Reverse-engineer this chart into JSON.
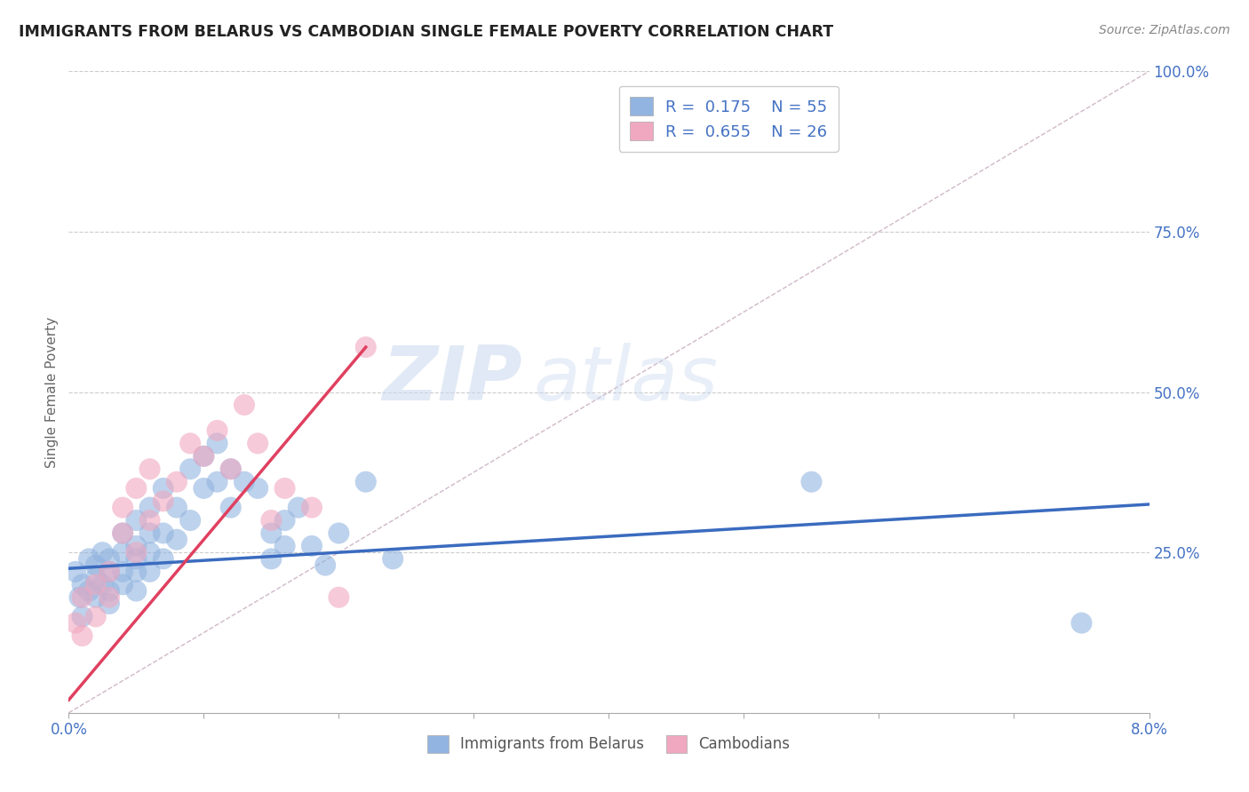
{
  "title": "IMMIGRANTS FROM BELARUS VS CAMBODIAN SINGLE FEMALE POVERTY CORRELATION CHART",
  "source": "Source: ZipAtlas.com",
  "ylabel": "Single Female Poverty",
  "right_yticklabels": [
    "100.0%",
    "75.0%",
    "50.0%",
    "25.0%",
    ""
  ],
  "right_ytick_vals": [
    1.0,
    0.75,
    0.5,
    0.25,
    0.0
  ],
  "watermark_text": "ZIP",
  "watermark_text2": "atlas",
  "background_color": "#ffffff",
  "scatter_blue_color": "#92b4e0",
  "scatter_pink_color": "#f0a8c0",
  "line_blue_color": "#3a6bbf",
  "line_pink_color": "#e04060",
  "diag_line_color": "#d0b8c8",
  "xlim": [
    0.0,
    0.08
  ],
  "ylim": [
    0.0,
    1.0
  ],
  "blue_scatter_x": [
    0.0005,
    0.0008,
    0.001,
    0.001,
    0.0015,
    0.0015,
    0.002,
    0.002,
    0.002,
    0.0025,
    0.0025,
    0.003,
    0.003,
    0.003,
    0.003,
    0.004,
    0.004,
    0.004,
    0.004,
    0.005,
    0.005,
    0.005,
    0.005,
    0.005,
    0.006,
    0.006,
    0.006,
    0.006,
    0.007,
    0.007,
    0.007,
    0.008,
    0.008,
    0.009,
    0.009,
    0.01,
    0.01,
    0.011,
    0.011,
    0.012,
    0.012,
    0.013,
    0.014,
    0.015,
    0.015,
    0.016,
    0.016,
    0.017,
    0.018,
    0.019,
    0.02,
    0.022,
    0.024,
    0.055,
    0.075
  ],
  "blue_scatter_y": [
    0.22,
    0.18,
    0.2,
    0.15,
    0.24,
    0.19,
    0.23,
    0.18,
    0.21,
    0.25,
    0.2,
    0.22,
    0.17,
    0.24,
    0.19,
    0.28,
    0.22,
    0.25,
    0.2,
    0.3,
    0.24,
    0.26,
    0.22,
    0.19,
    0.28,
    0.32,
    0.25,
    0.22,
    0.35,
    0.28,
    0.24,
    0.32,
    0.27,
    0.38,
    0.3,
    0.4,
    0.35,
    0.42,
    0.36,
    0.38,
    0.32,
    0.36,
    0.35,
    0.28,
    0.24,
    0.3,
    0.26,
    0.32,
    0.26,
    0.23,
    0.28,
    0.36,
    0.24,
    0.36,
    0.14
  ],
  "pink_scatter_x": [
    0.0005,
    0.001,
    0.001,
    0.002,
    0.002,
    0.003,
    0.003,
    0.004,
    0.004,
    0.005,
    0.005,
    0.006,
    0.006,
    0.007,
    0.008,
    0.009,
    0.01,
    0.011,
    0.012,
    0.013,
    0.014,
    0.015,
    0.016,
    0.018,
    0.02,
    0.022
  ],
  "pink_scatter_y": [
    0.14,
    0.18,
    0.12,
    0.2,
    0.15,
    0.22,
    0.18,
    0.28,
    0.32,
    0.25,
    0.35,
    0.3,
    0.38,
    0.33,
    0.36,
    0.42,
    0.4,
    0.44,
    0.38,
    0.48,
    0.42,
    0.3,
    0.35,
    0.32,
    0.18,
    0.57
  ],
  "blue_line_x": [
    0.0,
    0.08
  ],
  "blue_line_y": [
    0.225,
    0.325
  ],
  "pink_line_x": [
    0.0,
    0.022
  ],
  "pink_line_y": [
    0.02,
    0.57
  ],
  "diag_line_x": [
    0.0,
    0.08
  ],
  "diag_line_y": [
    0.0,
    1.0
  ],
  "legend1_label": "R =  0.175    N = 55",
  "legend2_label": "R =  0.655    N = 26",
  "bottom_label1": "Immigrants from Belarus",
  "bottom_label2": "Cambodians"
}
